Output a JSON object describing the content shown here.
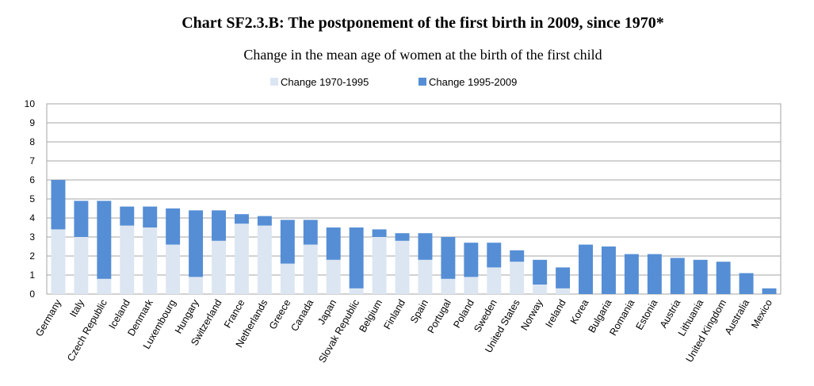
{
  "chart_data": {
    "type": "bar",
    "stacked": true,
    "title": "Chart SF2.3.B: The postponement of the first birth in 2009, since 1970*",
    "subtitle": "Change in the mean age of women at the birth of the first child",
    "xlabel": "",
    "ylabel": "",
    "ylim": [
      0,
      10
    ],
    "yticks": [
      0,
      1,
      2,
      3,
      4,
      5,
      6,
      7,
      8,
      9,
      10
    ],
    "grid": true,
    "legend_position": "top-center",
    "categories": [
      "Germany",
      "Italy",
      "Czech Republic",
      "Iceland",
      "Denmark",
      "Luxembourg",
      "Hungary",
      "Switzerland",
      "France",
      "Netherlands",
      "Greece",
      "Canada",
      "Japan",
      "Slovak Republic",
      "Belgium",
      "Finland",
      "Spain",
      "Portugal",
      "Poland",
      "Sweden",
      "United States",
      "Norway",
      "Ireland",
      "Korea",
      "Bulgaria",
      "Romania",
      "Estonia",
      "Austria",
      "Lithuania",
      "United Kingdom",
      "Australia",
      "Mexico"
    ],
    "series": [
      {
        "name": "Change 1970-1995",
        "color": "#dce6f2",
        "values": [
          3.4,
          3.0,
          0.8,
          3.6,
          3.5,
          2.6,
          0.9,
          2.8,
          3.7,
          3.6,
          1.6,
          2.6,
          1.8,
          0.3,
          3.0,
          2.8,
          1.8,
          0.8,
          0.9,
          1.4,
          1.7,
          0.5,
          0.3,
          0,
          0,
          0,
          0,
          0,
          0,
          0,
          0,
          0
        ]
      },
      {
        "name": "Change 1995-2009",
        "color": "#558ed5",
        "values": [
          2.6,
          1.9,
          4.1,
          1.0,
          1.1,
          1.9,
          3.5,
          1.6,
          0.5,
          0.5,
          2.3,
          1.3,
          1.7,
          3.2,
          0.4,
          0.4,
          1.4,
          2.2,
          1.8,
          1.3,
          0.6,
          1.3,
          1.1,
          2.6,
          2.5,
          2.1,
          2.1,
          1.9,
          1.8,
          1.7,
          1.1,
          0.3
        ]
      }
    ]
  }
}
